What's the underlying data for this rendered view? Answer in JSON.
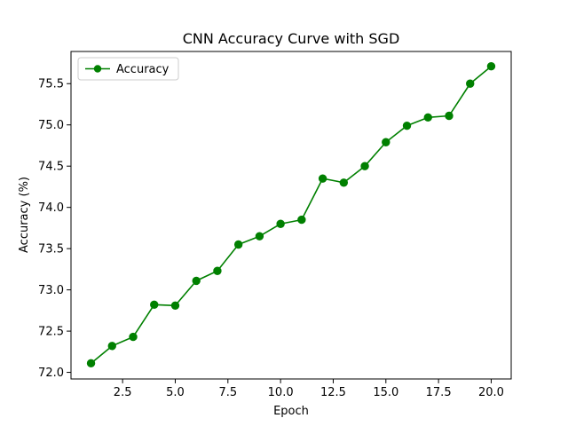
{
  "chart_data": {
    "type": "line",
    "title": "CNN Accuracy Curve with SGD",
    "xlabel": "Epoch",
    "ylabel": "Accuracy (%)",
    "xlim": [
      0.05,
      20.95
    ],
    "ylim": [
      71.92,
      75.89
    ],
    "xticks": [
      2.5,
      5.0,
      7.5,
      10.0,
      12.5,
      15.0,
      17.5,
      20.0
    ],
    "xtick_labels": [
      "2.5",
      "5.0",
      "7.5",
      "10.0",
      "12.5",
      "15.0",
      "17.5",
      "20.0"
    ],
    "yticks": [
      72.0,
      72.5,
      73.0,
      73.5,
      74.0,
      74.5,
      75.0,
      75.5
    ],
    "ytick_labels": [
      "72.0",
      "72.5",
      "73.0",
      "73.5",
      "74.0",
      "74.5",
      "75.0",
      "75.5"
    ],
    "grid": false,
    "legend": {
      "position": "upper left",
      "entries": [
        "Accuracy"
      ]
    },
    "series": [
      {
        "name": "Accuracy",
        "color": "#008000",
        "marker": "circle",
        "x": [
          1,
          2,
          3,
          4,
          5,
          6,
          7,
          8,
          9,
          10,
          11,
          12,
          13,
          14,
          15,
          16,
          17,
          18,
          19,
          20
        ],
        "y": [
          72.11,
          72.32,
          72.43,
          72.82,
          72.81,
          73.11,
          73.23,
          73.55,
          73.65,
          73.8,
          73.85,
          74.35,
          74.3,
          74.5,
          74.79,
          74.99,
          75.09,
          75.11,
          75.5,
          75.71
        ]
      }
    ]
  }
}
